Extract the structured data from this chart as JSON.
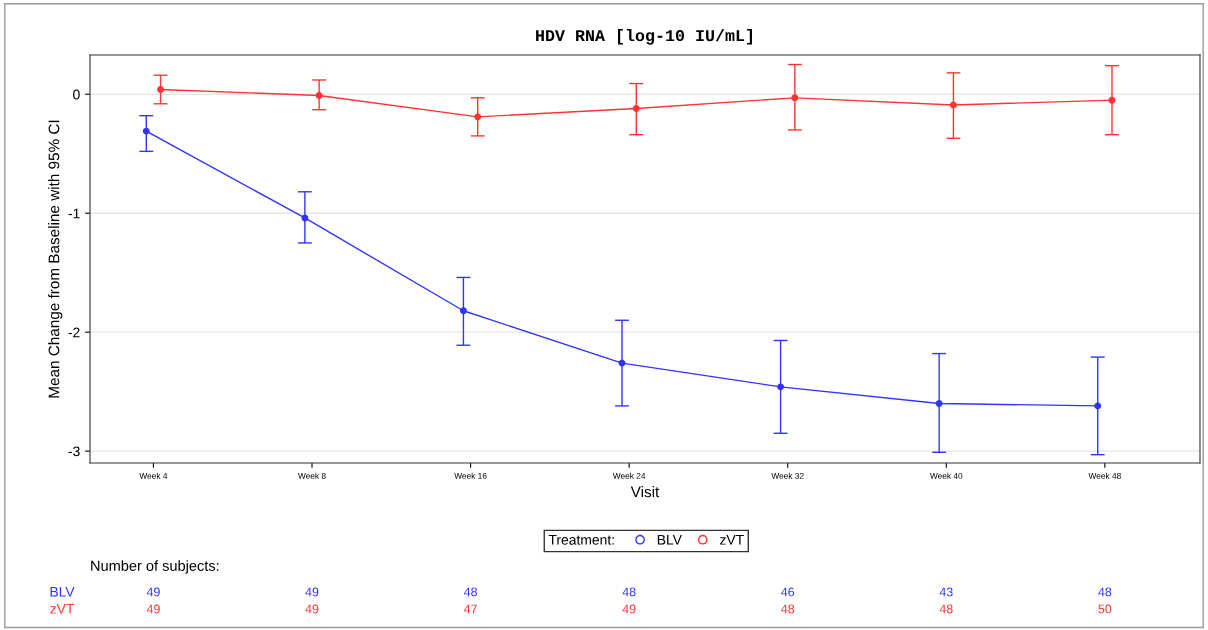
{
  "chart_data": {
    "type": "line",
    "title": "HDV RNA [log-10 IU/mL]",
    "xlabel": "Visit",
    "ylabel": "Mean Change from Baseline with 95% CI",
    "categories": [
      "Week 4",
      "Week 8",
      "Week 16",
      "Week 24",
      "Week 32",
      "Week 40",
      "Week 48"
    ],
    "series": [
      {
        "name": "BLV",
        "color": "#3333ff",
        "values": [
          -0.31,
          -1.04,
          -1.82,
          -2.26,
          -2.46,
          -2.6,
          -2.62
        ],
        "errors": [
          [
            -0.48,
            -0.18
          ],
          [
            -1.25,
            -0.82
          ],
          [
            -2.11,
            -1.54
          ],
          [
            -2.62,
            -1.9
          ],
          [
            -2.85,
            -2.07
          ],
          [
            -3.01,
            -2.18
          ],
          [
            -3.03,
            -2.21
          ]
        ]
      },
      {
        "name": "zVT",
        "color": "#ff3333",
        "values": [
          0.04,
          -0.01,
          -0.19,
          -0.12,
          -0.03,
          -0.09,
          -0.05
        ],
        "errors": [
          [
            -0.08,
            0.16
          ],
          [
            -0.13,
            0.12
          ],
          [
            -0.35,
            -0.03
          ],
          [
            -0.34,
            0.09
          ],
          [
            -0.3,
            0.25
          ],
          [
            -0.37,
            0.18
          ],
          [
            -0.34,
            0.24
          ]
        ]
      }
    ],
    "ylim": [
      -3.1,
      0.33
    ],
    "yticks": [
      -3,
      -2,
      -1,
      0
    ],
    "grid": "y",
    "legend": "bottom",
    "legend_title": "Treatment:",
    "marker": "circle",
    "line_style": "solid",
    "annotations": [
      "Number of subjects:",
      "49 49 48 48 46 43 48",
      "49 49 47 49 48 48 50"
    ]
  }
}
